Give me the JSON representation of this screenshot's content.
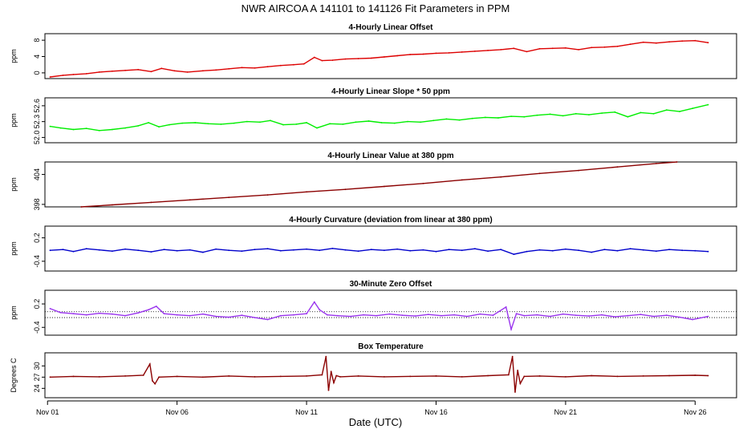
{
  "page_title": "NWR   AIRCOA A   141101 to 141126   Fit Parameters in PPM",
  "x_axis": {
    "label": "Date (UTC)",
    "ticks": [
      {
        "day": 1,
        "label": "Nov 01"
      },
      {
        "day": 6,
        "label": "Nov 06"
      },
      {
        "day": 11,
        "label": "Nov 11"
      },
      {
        "day": 16,
        "label": "Nov 16"
      },
      {
        "day": 21,
        "label": "Nov 21"
      },
      {
        "day": 26,
        "label": "Nov 26"
      }
    ],
    "range": [
      0.9,
      27.6
    ]
  },
  "chart_data": [
    {
      "type": "line",
      "title": "4-Hourly Linear Offset",
      "ylabel": "ppm",
      "ylim": [
        -1.4,
        9.6
      ],
      "yticks": [
        {
          "v": 0,
          "label": "0"
        },
        {
          "v": 4,
          "label": "4"
        },
        {
          "v": 8,
          "label": "8"
        }
      ],
      "color": "#dd0000",
      "series": [
        {
          "x": [
            1.1,
            1.6,
            2.0,
            2.5,
            3.0,
            3.5,
            4.0,
            4.5,
            5.0,
            5.4,
            5.9,
            6.4,
            7.0,
            7.5,
            8.0,
            8.5,
            9.0,
            9.5,
            10.0,
            10.5,
            10.9,
            11.3,
            11.6,
            12.0,
            12.5,
            13.0,
            13.5,
            14.0,
            14.5,
            15.0,
            15.5,
            16.0,
            16.5,
            17.0,
            17.5,
            18.0,
            18.5,
            19.0,
            19.5,
            20.0,
            20.5,
            21.0,
            21.5,
            22.0,
            22.5,
            23.0,
            23.5,
            24.0,
            24.5,
            25.0,
            25.5,
            26.0,
            26.5
          ],
          "y": [
            -1.0,
            -0.6,
            -0.4,
            -0.2,
            0.2,
            0.4,
            0.6,
            0.8,
            0.3,
            1.1,
            0.5,
            0.2,
            0.5,
            0.7,
            1.0,
            1.3,
            1.2,
            1.5,
            1.8,
            2.0,
            2.2,
            3.8,
            3.0,
            3.1,
            3.4,
            3.5,
            3.6,
            3.9,
            4.2,
            4.5,
            4.6,
            4.8,
            4.9,
            5.1,
            5.3,
            5.5,
            5.7,
            6.0,
            5.2,
            5.9,
            6.0,
            6.1,
            5.7,
            6.2,
            6.3,
            6.5,
            7.0,
            7.5,
            7.3,
            7.6,
            7.8,
            7.9,
            7.4
          ]
        }
      ]
    },
    {
      "type": "line",
      "title": "4-Hourly Linear Slope * 50 ppm",
      "ylabel": "ppm",
      "ylim": [
        51.9,
        52.75
      ],
      "yticks": [
        {
          "v": 52.0,
          "label": "52.0"
        },
        {
          "v": 52.3,
          "label": "52.3"
        },
        {
          "v": 52.6,
          "label": "52.6"
        }
      ],
      "color": "#00ee00",
      "series": [
        {
          "x": [
            1.1,
            1.5,
            2.0,
            2.5,
            3.0,
            3.5,
            4.0,
            4.5,
            4.9,
            5.3,
            5.7,
            6.2,
            6.7,
            7.2,
            7.7,
            8.2,
            8.7,
            9.2,
            9.6,
            10.1,
            10.6,
            11.0,
            11.4,
            11.9,
            12.4,
            12.9,
            13.4,
            13.9,
            14.4,
            14.9,
            15.4,
            15.9,
            16.4,
            16.9,
            17.4,
            17.9,
            18.4,
            18.9,
            19.4,
            19.9,
            20.4,
            20.9,
            21.4,
            21.9,
            22.4,
            22.9,
            23.4,
            23.9,
            24.4,
            24.9,
            25.4,
            25.9,
            26.5
          ],
          "y": [
            52.21,
            52.18,
            52.15,
            52.17,
            52.13,
            52.15,
            52.18,
            52.22,
            52.28,
            52.2,
            52.24,
            52.27,
            52.28,
            52.26,
            52.25,
            52.27,
            52.3,
            52.29,
            52.32,
            52.24,
            52.25,
            52.28,
            52.18,
            52.26,
            52.25,
            52.29,
            52.31,
            52.28,
            52.27,
            52.3,
            52.29,
            52.32,
            52.35,
            52.33,
            52.36,
            52.38,
            52.37,
            52.4,
            52.39,
            52.42,
            52.44,
            52.41,
            52.45,
            52.43,
            52.46,
            52.48,
            52.39,
            52.47,
            52.45,
            52.52,
            52.49,
            52.55,
            52.62
          ]
        }
      ]
    },
    {
      "type": "line",
      "title": "4-Hourly Linear Value at 380 ppm",
      "ylabel": "ppm",
      "ylim": [
        397.5,
        406.5
      ],
      "yticks": [
        {
          "v": 398,
          "label": "398"
        },
        {
          "v": 404,
          "label": "404"
        }
      ],
      "color": "#8b0000",
      "series": [
        {
          "x": [
            2.3,
            3.5,
            5.0,
            6.5,
            8.0,
            9.5,
            11.0,
            12.5,
            14.0,
            15.5,
            17.0,
            18.5,
            20.0,
            21.5,
            23.0,
            24.5,
            25.3
          ],
          "y": [
            397.5,
            397.9,
            398.4,
            398.9,
            399.4,
            399.9,
            400.5,
            401.0,
            401.6,
            402.2,
            402.9,
            403.5,
            404.2,
            404.8,
            405.5,
            406.2,
            406.5
          ]
        }
      ]
    },
    {
      "type": "line",
      "title": "4-Hourly Curvature (deviation from linear at 380 ppm)",
      "ylabel": "ppm",
      "ylim": [
        -0.65,
        0.5
      ],
      "yticks": [
        {
          "v": -0.4,
          "label": "-0.4"
        },
        {
          "v": 0.2,
          "label": "0.2"
        }
      ],
      "color": "#0000cc",
      "series": [
        {
          "x": [
            1.1,
            1.6,
            2.0,
            2.5,
            3.0,
            3.5,
            4.0,
            4.5,
            5.0,
            5.5,
            6.0,
            6.5,
            7.0,
            7.5,
            8.0,
            8.5,
            9.0,
            9.5,
            10.0,
            10.5,
            11.0,
            11.5,
            12.0,
            12.5,
            13.0,
            13.5,
            14.0,
            14.5,
            15.0,
            15.5,
            16.0,
            16.5,
            17.0,
            17.5,
            18.0,
            18.5,
            19.0,
            19.5,
            20.0,
            20.5,
            21.0,
            21.5,
            22.0,
            22.5,
            23.0,
            23.5,
            24.0,
            24.5,
            25.0,
            25.5,
            26.0,
            26.5
          ],
          "y": [
            -0.12,
            -0.1,
            -0.15,
            -0.08,
            -0.11,
            -0.14,
            -0.09,
            -0.12,
            -0.16,
            -0.1,
            -0.13,
            -0.11,
            -0.17,
            -0.09,
            -0.12,
            -0.14,
            -0.1,
            -0.08,
            -0.13,
            -0.11,
            -0.09,
            -0.12,
            -0.07,
            -0.11,
            -0.14,
            -0.1,
            -0.12,
            -0.09,
            -0.13,
            -0.11,
            -0.15,
            -0.1,
            -0.12,
            -0.08,
            -0.14,
            -0.1,
            -0.22,
            -0.15,
            -0.11,
            -0.13,
            -0.09,
            -0.12,
            -0.17,
            -0.1,
            -0.13,
            -0.08,
            -0.11,
            -0.14,
            -0.1,
            -0.12,
            -0.13,
            -0.15
          ]
        }
      ]
    },
    {
      "type": "line",
      "title": "30-Minute Zero Offset",
      "ylabel": "ppm",
      "ylim": [
        -0.6,
        0.55
      ],
      "yticks": [
        {
          "v": -0.4,
          "label": "-0.4"
        },
        {
          "v": 0.2,
          "label": "0.2"
        }
      ],
      "reference_lines": [
        0.0,
        -0.15
      ],
      "color": "#9933ee",
      "series": [
        {
          "x": [
            1.1,
            1.5,
            2.0,
            2.5,
            3.0,
            3.5,
            4.0,
            4.5,
            4.9,
            5.2,
            5.5,
            6.0,
            6.5,
            7.0,
            7.5,
            8.0,
            8.5,
            9.0,
            9.5,
            10.0,
            10.5,
            11.0,
            11.3,
            11.5,
            11.8,
            12.2,
            12.7,
            13.2,
            13.7,
            14.2,
            14.7,
            15.2,
            15.7,
            16.2,
            16.7,
            17.2,
            17.7,
            18.2,
            18.7,
            18.9,
            19.1,
            19.4,
            19.9,
            20.4,
            20.9,
            21.4,
            21.9,
            22.4,
            22.9,
            23.4,
            23.9,
            24.4,
            24.9,
            25.4,
            25.9,
            26.5
          ],
          "y": [
            0.08,
            -0.02,
            -0.05,
            -0.08,
            -0.04,
            -0.06,
            -0.1,
            -0.03,
            0.05,
            0.14,
            -0.05,
            -0.08,
            -0.1,
            -0.06,
            -0.12,
            -0.14,
            -0.09,
            -0.15,
            -0.2,
            -0.1,
            -0.08,
            -0.05,
            0.25,
            0.05,
            -0.08,
            -0.1,
            -0.12,
            -0.08,
            -0.1,
            -0.06,
            -0.09,
            -0.11,
            -0.07,
            -0.1,
            -0.08,
            -0.12,
            -0.06,
            -0.09,
            0.12,
            -0.45,
            -0.05,
            -0.1,
            -0.08,
            -0.12,
            -0.06,
            -0.09,
            -0.11,
            -0.08,
            -0.13,
            -0.1,
            -0.07,
            -0.12,
            -0.09,
            -0.14,
            -0.2,
            -0.12
          ]
        }
      ]
    },
    {
      "type": "line",
      "title": "Box Temperature",
      "ylabel": "Degrees C",
      "ylim": [
        21.5,
        33.5
      ],
      "yticks": [
        {
          "v": 24,
          "label": "24"
        },
        {
          "v": 27,
          "label": "27"
        },
        {
          "v": 30,
          "label": "30"
        }
      ],
      "color": "#8b0000",
      "series": [
        {
          "x": [
            1.1,
            2.0,
            3.0,
            4.0,
            4.7,
            4.95,
            5.05,
            5.15,
            5.3,
            6.0,
            7.0,
            8.0,
            9.0,
            10.0,
            11.0,
            11.6,
            11.75,
            11.85,
            11.95,
            12.05,
            12.15,
            12.3,
            13.0,
            14.0,
            15.0,
            16.0,
            17.0,
            18.0,
            18.8,
            18.95,
            19.05,
            19.15,
            19.25,
            19.4,
            20.0,
            21.0,
            22.0,
            23.0,
            24.0,
            25.0,
            26.0,
            26.5
          ],
          "y": [
            27.0,
            27.2,
            27.1,
            27.3,
            27.5,
            30.5,
            26.0,
            25.2,
            27.0,
            27.2,
            27.0,
            27.3,
            27.1,
            27.2,
            27.3,
            27.6,
            32.5,
            23.5,
            28.5,
            25.5,
            27.4,
            27.1,
            27.3,
            27.1,
            27.2,
            27.3,
            27.1,
            27.4,
            27.6,
            32.5,
            23.0,
            28.8,
            25.3,
            27.2,
            27.3,
            27.1,
            27.4,
            27.2,
            27.3,
            27.4,
            27.5,
            27.4
          ]
        }
      ]
    }
  ]
}
